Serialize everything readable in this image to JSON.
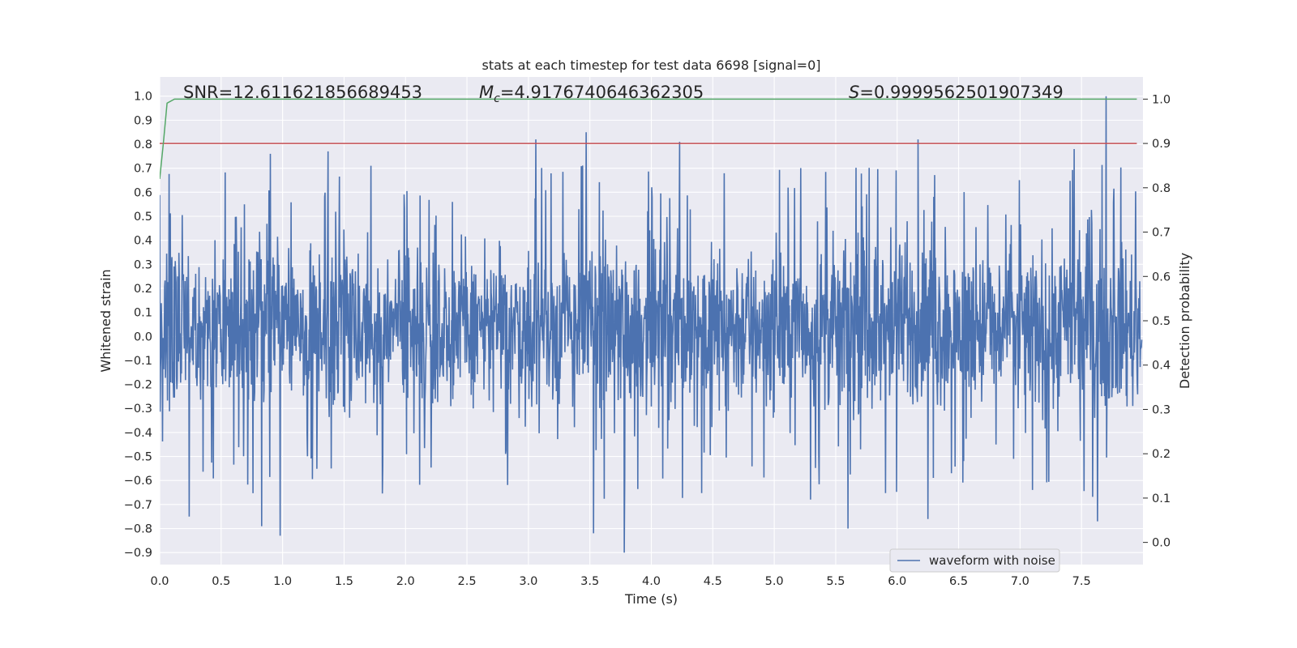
{
  "chart_data": {
    "type": "line",
    "title": "stats at each timestep for test data 6698 [signal=0]",
    "xlabel": "Time (s)",
    "ylabel": "Whitened strain",
    "y2label": "Detection probability",
    "xlim": [
      0.0,
      8.0
    ],
    "ylim": [
      -0.95,
      1.08
    ],
    "y2lim": [
      -0.05,
      1.05
    ],
    "xticks": [
      "0.0",
      "0.5",
      "1.0",
      "1.5",
      "2.0",
      "2.5",
      "3.0",
      "3.5",
      "4.0",
      "4.5",
      "5.0",
      "5.5",
      "6.0",
      "6.5",
      "7.0",
      "7.5"
    ],
    "yticks": [
      "−0.9",
      "−0.8",
      "−0.7",
      "−0.6",
      "−0.5",
      "−0.4",
      "−0.3",
      "−0.2",
      "−0.1",
      "0.0",
      "0.1",
      "0.2",
      "0.3",
      "0.4",
      "0.5",
      "0.6",
      "0.7",
      "0.8",
      "0.9",
      "1.0"
    ],
    "y2ticks": [
      "0.0",
      "0.1",
      "0.2",
      "0.3",
      "0.4",
      "0.5",
      "0.6",
      "0.7",
      "0.8",
      "0.9",
      "1.0"
    ],
    "grid": true,
    "legend_position": "lower-right",
    "annotations": {
      "snr": "SNR=12.611621856689453",
      "mc_symbol": "M",
      "mc_sub": "c",
      "mc_value": "=4.9176740646362305",
      "s_symbol": "S",
      "s_value": "=0.9999562501907349"
    },
    "series": [
      {
        "name": "waveform with noise",
        "axis": "left",
        "color": "#4c72b0",
        "description_values": {
          "x_start": 0.0,
          "x_end": 7.99,
          "typical_range": [
            -0.33,
            0.43
          ],
          "peaks": [
            {
              "x": 3.47,
              "y": 0.85
            },
            {
              "x": 7.7,
              "y": 1.0
            },
            {
              "x": 3.06,
              "y": 0.82
            },
            {
              "x": 4.23,
              "y": 0.81
            },
            {
              "x": 6.17,
              "y": 0.82
            },
            {
              "x": 0.9,
              "y": 0.76
            },
            {
              "x": 5.6,
              "y": 0.79
            },
            {
              "x": 7.44,
              "y": 0.78
            },
            {
              "x": 1.37,
              "y": 0.77
            }
          ],
          "troughs": [
            {
              "x": 3.78,
              "y": -0.9
            },
            {
              "x": 0.98,
              "y": -0.83
            },
            {
              "x": 3.53,
              "y": -0.82
            },
            {
              "x": 5.6,
              "y": -0.8
            },
            {
              "x": 0.83,
              "y": -0.79
            },
            {
              "x": 7.63,
              "y": -0.77
            },
            {
              "x": 6.25,
              "y": -0.76
            },
            {
              "x": 0.24,
              "y": -0.75
            }
          ]
        }
      },
      {
        "name": "",
        "axis": "right",
        "color": "#55a868",
        "x": [
          0.0,
          0.03,
          0.06,
          0.12,
          7.95
        ],
        "y": [
          0.82,
          0.9,
          0.991,
          1.0,
          1.0
        ]
      },
      {
        "name": "",
        "axis": "right",
        "color": "#c44e52",
        "x": [
          0.0,
          7.95
        ],
        "y": [
          0.9,
          0.9
        ]
      }
    ]
  },
  "colors": {
    "plot_bg": "#eaeaf2",
    "grid": "#ffffff",
    "waveform": "#4c72b0",
    "probability": "#55a868",
    "threshold": "#c44e52"
  }
}
